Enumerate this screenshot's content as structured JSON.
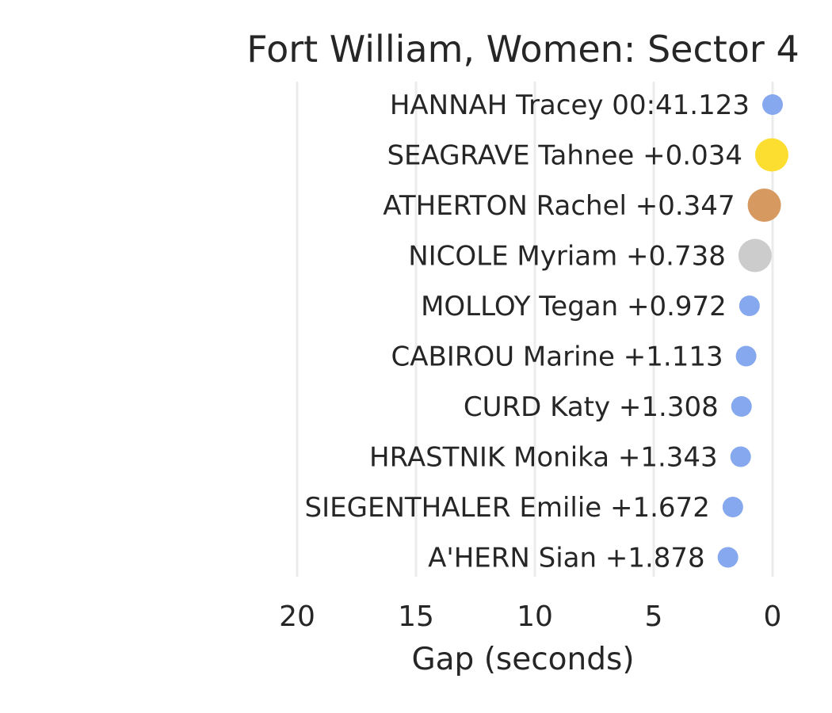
{
  "chart_data": {
    "type": "scatter",
    "title": "Fort William, Women: Sector 4",
    "xlabel": "Gap (seconds)",
    "ylabel": "",
    "xlim": [
      20,
      0
    ],
    "x_axis_reversed": true,
    "x_ticks": [
      20,
      15,
      10,
      5,
      0
    ],
    "x_tick_labels": [
      "20",
      "15",
      "10",
      "5",
      "0"
    ],
    "grid": "vertical only",
    "legend": "none",
    "points": [
      {
        "rank": 1,
        "label": "HANNAH Tracey 00:41.123",
        "gap": 0.0,
        "color": "#86a8ee",
        "marker": "small"
      },
      {
        "rank": 2,
        "label": "SEAGRAVE Tahnee +0.034",
        "gap": 0.034,
        "color": "#fcde30",
        "marker": "large"
      },
      {
        "rank": 3,
        "label": "ATHERTON Rachel +0.347",
        "gap": 0.347,
        "color": "#d69a60",
        "marker": "large"
      },
      {
        "rank": 4,
        "label": "NICOLE Myriam +0.738",
        "gap": 0.738,
        "color": "#cccccc",
        "marker": "large"
      },
      {
        "rank": 5,
        "label": "MOLLOY Tegan +0.972",
        "gap": 0.972,
        "color": "#86a8ee",
        "marker": "small"
      },
      {
        "rank": 6,
        "label": "CABIROU Marine +1.113",
        "gap": 1.113,
        "color": "#86a8ee",
        "marker": "small"
      },
      {
        "rank": 7,
        "label": "CURD Katy +1.308",
        "gap": 1.308,
        "color": "#86a8ee",
        "marker": "small"
      },
      {
        "rank": 8,
        "label": "HRASTNIK Monika +1.343",
        "gap": 1.343,
        "color": "#86a8ee",
        "marker": "small"
      },
      {
        "rank": 9,
        "label": "SIEGENTHALER Emilie +1.672",
        "gap": 1.672,
        "color": "#86a8ee",
        "marker": "small"
      },
      {
        "rank": 10,
        "label": "A'HERN Sian +1.878",
        "gap": 1.878,
        "color": "#86a8ee",
        "marker": "small"
      }
    ]
  }
}
